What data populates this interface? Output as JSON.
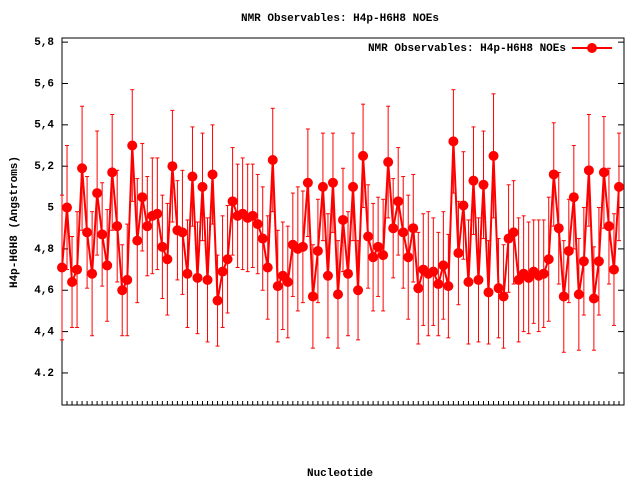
{
  "chart_data": {
    "type": "line",
    "title": "NMR Observables: H4p-H6H8 NOEs",
    "x_label": "Nucleotide",
    "y_label": "H4p-H6H8 (Angstroms)",
    "x": [
      1,
      2,
      3,
      4,
      5,
      6,
      7,
      8,
      9,
      10,
      11,
      12,
      13,
      14,
      15,
      16,
      17,
      18,
      19,
      20,
      21,
      22,
      23,
      24,
      25,
      26,
      27,
      28,
      29,
      30,
      31,
      32,
      33,
      34,
      35,
      36,
      37,
      38,
      39,
      40,
      41,
      42,
      43,
      44,
      45,
      46,
      47,
      48,
      49,
      50,
      51,
      52,
      53,
      54,
      55,
      56,
      57,
      58,
      59,
      60,
      61,
      62,
      63,
      64,
      65,
      66,
      67,
      68,
      69,
      70,
      71,
      72,
      73,
      74,
      75,
      76,
      77,
      78,
      79,
      80,
      81,
      82,
      83,
      84,
      85,
      86,
      87,
      88,
      89,
      90,
      91,
      92,
      93,
      94,
      95,
      96,
      97,
      98,
      99,
      100,
      101,
      102,
      103,
      104,
      105,
      106,
      107,
      108,
      109,
      110,
      111,
      112
    ],
    "series": [
      {
        "name": "NMR Observables: H4p-H6H8 NOEs",
        "color": "#ff0000",
        "values": [
          4.71,
          5.0,
          4.64,
          4.7,
          5.19,
          4.88,
          4.68,
          5.07,
          4.87,
          4.72,
          5.17,
          4.91,
          4.6,
          4.65,
          5.3,
          4.84,
          5.05,
          4.91,
          4.96,
          4.97,
          4.81,
          4.75,
          5.2,
          4.89,
          4.88,
          4.68,
          5.15,
          4.66,
          5.1,
          4.65,
          5.16,
          4.55,
          4.69,
          4.75,
          5.03,
          4.96,
          4.97,
          4.95,
          4.96,
          4.92,
          4.85,
          4.71,
          5.23,
          4.62,
          4.67,
          4.64,
          4.82,
          4.8,
          4.81,
          5.12,
          4.57,
          4.79,
          5.1,
          4.67,
          5.12,
          4.58,
          4.94,
          4.68,
          5.1,
          4.6,
          5.25,
          4.86,
          4.76,
          4.81,
          4.77,
          5.22,
          4.9,
          5.03,
          4.88,
          4.76,
          4.9,
          4.61,
          4.7,
          4.68,
          4.69,
          4.63,
          4.72,
          4.62,
          5.32,
          4.78,
          5.01,
          4.64,
          5.13,
          4.65,
          5.11,
          4.59,
          5.25,
          4.61,
          4.57,
          4.85,
          4.88,
          4.65,
          4.68,
          4.66,
          4.69,
          4.67,
          4.68,
          4.75,
          5.16,
          4.9,
          4.57,
          4.79,
          5.05,
          4.58,
          4.74,
          5.18,
          4.56,
          4.74,
          5.17,
          4.91,
          4.7,
          5.1
        ],
        "errors": [
          0.35,
          0.3,
          0.22,
          0.28,
          0.3,
          0.27,
          0.3,
          0.3,
          0.25,
          0.27,
          0.28,
          0.27,
          0.22,
          0.27,
          0.27,
          0.3,
          0.26,
          0.24,
          0.28,
          0.27,
          0.25,
          0.27,
          0.27,
          0.24,
          0.3,
          0.26,
          0.24,
          0.27,
          0.26,
          0.3,
          0.24,
          0.22,
          0.27,
          0.26,
          0.26,
          0.25,
          0.27,
          0.26,
          0.25,
          0.24,
          0.25,
          0.25,
          0.25,
          0.27,
          0.26,
          0.27,
          0.25,
          0.3,
          0.27,
          0.26,
          0.25,
          0.25,
          0.26,
          0.3,
          0.24,
          0.26,
          0.25,
          0.3,
          0.26,
          0.24,
          0.25,
          0.25,
          0.26,
          0.24,
          0.27,
          0.27,
          0.24,
          0.26,
          0.27,
          0.3,
          0.26,
          0.27,
          0.27,
          0.3,
          0.26,
          0.25,
          0.26,
          0.25,
          0.25,
          0.25,
          0.26,
          0.3,
          0.26,
          0.3,
          0.26,
          0.25,
          0.3,
          0.24,
          0.25,
          0.26,
          0.25,
          0.3,
          0.28,
          0.27,
          0.25,
          0.27,
          0.26,
          0.3,
          0.25,
          0.27,
          0.27,
          0.25,
          0.25,
          0.27,
          0.26,
          0.27,
          0.25,
          0.26,
          0.27,
          0.28,
          0.27,
          0.26
        ]
      }
    ],
    "xlim": [
      1,
      113
    ],
    "ylim": [
      4.045,
      5.82
    ],
    "yticks": [
      4.2,
      {
        "value": 4.4,
        "label": "4,4"
      },
      {
        "value": 4.6,
        "label": "4,6"
      },
      {
        "value": 4.8,
        "label": "4,8"
      },
      5,
      {
        "value": 5.2,
        "label": "5,2"
      },
      {
        "value": 5.4,
        "label": "5,4"
      },
      {
        "value": 5.6,
        "label": "5,6"
      },
      {
        "value": 5.8,
        "label": "5,8"
      }
    ],
    "legend": "top-right"
  }
}
